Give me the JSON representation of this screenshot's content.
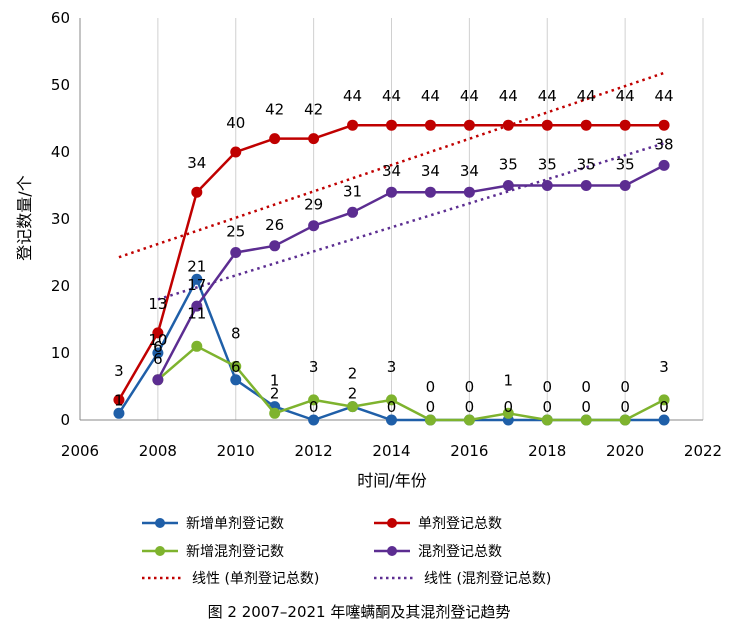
{
  "chart_data": {
    "type": "line",
    "caption": "图 2   2007–2021 年噻螨酮及其混剂登记趋势",
    "xlabel": "时间/年份",
    "ylabel": "登记数量/个",
    "xlim": [
      2006,
      2022
    ],
    "ylim": [
      0,
      60
    ],
    "xticks": [
      2006,
      2008,
      2010,
      2012,
      2014,
      2016,
      2018,
      2020,
      2022
    ],
    "yticks": [
      0,
      10,
      20,
      30,
      40,
      50,
      60
    ],
    "grid": "vertical",
    "legend_position": "bottom",
    "x": [
      2007,
      2008,
      2009,
      2010,
      2011,
      2012,
      2013,
      2014,
      2015,
      2016,
      2017,
      2018,
      2019,
      2020,
      2021
    ],
    "series": [
      {
        "name": "新增单剂登记数",
        "color": "#1f5fa8",
        "style": "solid",
        "values": [
          1,
          10,
          21,
          6,
          2,
          0,
          2,
          0,
          0,
          0,
          0,
          0,
          0,
          0,
          0
        ]
      },
      {
        "name": "单剂登记总数",
        "color": "#c00000",
        "style": "solid",
        "values": [
          3,
          13,
          34,
          40,
          42,
          42,
          44,
          44,
          44,
          44,
          44,
          44,
          44,
          44,
          44
        ]
      },
      {
        "name": "新增混剂登记数",
        "color": "#7eb32e",
        "style": "solid",
        "values": [
          null,
          6,
          11,
          8,
          1,
          3,
          2,
          3,
          0,
          0,
          1,
          0,
          0,
          0,
          3
        ]
      },
      {
        "name": "混剂登记总数",
        "color": "#5c2d91",
        "style": "solid",
        "values": [
          null,
          6,
          17,
          25,
          26,
          29,
          31,
          34,
          34,
          34,
          35,
          35,
          35,
          35,
          38
        ]
      }
    ],
    "trendlines": [
      {
        "name": "线性 (单剂登记总数)",
        "color": "#c00000",
        "style": "dotted",
        "x": [
          2007,
          2021
        ],
        "values": [
          24.3,
          51.8
        ]
      },
      {
        "name": "线性 (混剂登记总数)",
        "color": "#5c2d91",
        "style": "dotted",
        "x": [
          2008,
          2021
        ],
        "values": [
          18.0,
          41.3
        ]
      }
    ]
  }
}
